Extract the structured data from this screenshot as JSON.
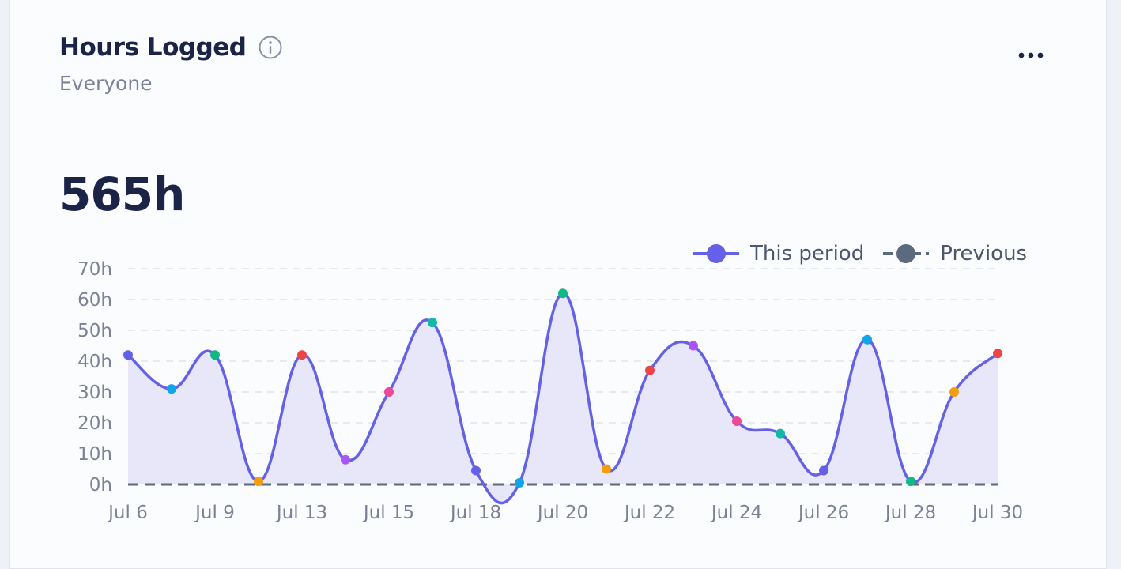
{
  "card": {
    "title": "Hours Logged",
    "subtitle": "Everyone",
    "total": "565h",
    "icons": {
      "info": "info-icon",
      "more": "more-horizontal-icon"
    }
  },
  "legend": [
    {
      "label": "This period",
      "color": "#6461e6",
      "style": "solid"
    },
    {
      "label": "Previous",
      "color": "#5c6a7e",
      "style": "dashed"
    }
  ],
  "chart_data": {
    "type": "area",
    "title": "",
    "xlabel": "",
    "ylabel": "",
    "ylim": [
      0,
      70
    ],
    "ytick_labels": [
      "0h",
      "10h",
      "20h",
      "30h",
      "40h",
      "50h",
      "60h",
      "70h"
    ],
    "xtick_labels": [
      "Jul 6",
      "Jul 9",
      "Jul 13",
      "Jul 15",
      "Jul 18",
      "Jul 20",
      "Jul 22",
      "Jul 24",
      "Jul 26",
      "Jul 28",
      "Jul 30"
    ],
    "grid": true,
    "legend_position": "top-right",
    "series": [
      {
        "name": "This period",
        "color": "#6461e6",
        "fill": "#e5e4f9",
        "points": [
          {
            "x": 0,
            "y": 42,
            "color": "#6461e6"
          },
          {
            "x": 1,
            "y": 31,
            "color": "#0ea5e9"
          },
          {
            "x": 2,
            "y": 42,
            "color": "#10b981"
          },
          {
            "x": 3,
            "y": 1,
            "color": "#f59e0b"
          },
          {
            "x": 4,
            "y": 42,
            "color": "#ef4444"
          },
          {
            "x": 5,
            "y": 8,
            "color": "#a855f7"
          },
          {
            "x": 6,
            "y": 30,
            "color": "#ec4899"
          },
          {
            "x": 7,
            "y": 52.5,
            "color": "#14b8a6"
          },
          {
            "x": 8,
            "y": 4.5,
            "color": "#6461e6"
          },
          {
            "x": 9,
            "y": 0.5,
            "color": "#0ea5e9"
          },
          {
            "x": 10,
            "y": 62,
            "color": "#10b981"
          },
          {
            "x": 11,
            "y": 5,
            "color": "#f59e0b"
          },
          {
            "x": 12,
            "y": 37,
            "color": "#ef4444"
          },
          {
            "x": 13,
            "y": 45,
            "color": "#a855f7"
          },
          {
            "x": 14,
            "y": 20.5,
            "color": "#ec4899"
          },
          {
            "x": 15,
            "y": 16.5,
            "color": "#14b8a6"
          },
          {
            "x": 16,
            "y": 4.5,
            "color": "#6461e6"
          },
          {
            "x": 17,
            "y": 47,
            "color": "#0ea5e9"
          },
          {
            "x": 18,
            "y": 1,
            "color": "#10b981"
          },
          {
            "x": 19,
            "y": 30,
            "color": "#f59e0b"
          },
          {
            "x": 20,
            "y": 42.5,
            "color": "#ef4444"
          }
        ]
      },
      {
        "name": "Previous",
        "color": "#5c6a7e",
        "dashed": true,
        "values": [
          0,
          0,
          0,
          0,
          0,
          0,
          0,
          0,
          0,
          0,
          0,
          0,
          0,
          0,
          0,
          0,
          0,
          0,
          0,
          0,
          0
        ]
      }
    ]
  }
}
